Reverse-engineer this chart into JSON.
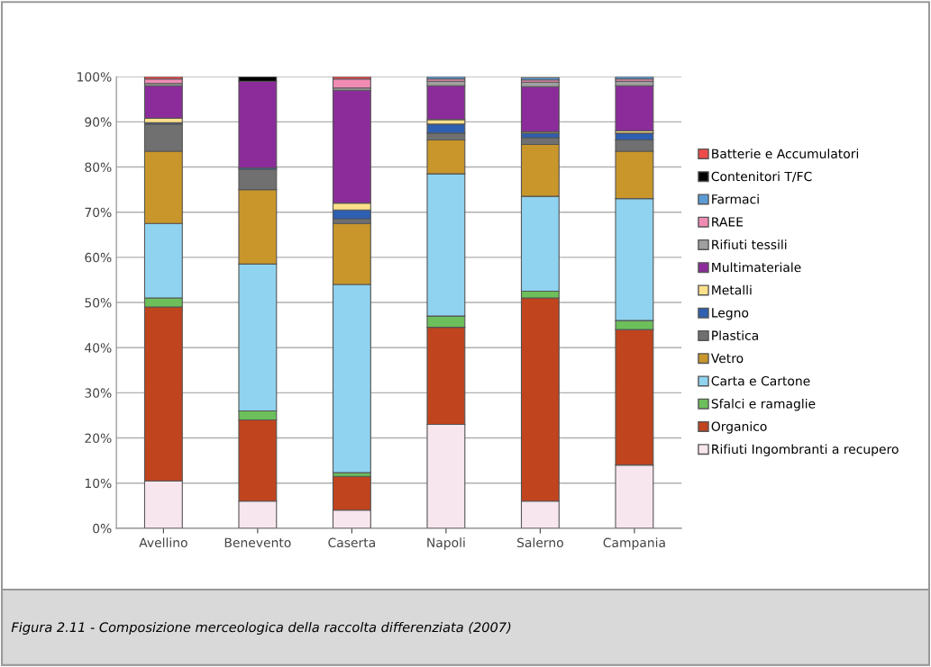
{
  "chart_data": {
    "type": "bar",
    "stacked": true,
    "categories": [
      "Avellino",
      "Benevento",
      "Caserta",
      "Napoli",
      "Salerno",
      "Campania"
    ],
    "series": [
      {
        "name": "Rifiuti Ingombranti a recupero",
        "color": "#f8e6ee",
        "values": [
          10.5,
          6,
          4,
          23,
          6,
          14
        ]
      },
      {
        "name": "Organico",
        "color": "#c0441e",
        "values": [
          38.5,
          18,
          7.5,
          21.5,
          45,
          30
        ]
      },
      {
        "name": "Sfalci e ramaglie",
        "color": "#6cbf5a",
        "values": [
          2,
          2,
          0.8,
          2.5,
          1.5,
          2
        ]
      },
      {
        "name": "Carta e Cartone",
        "color": "#8fd3f0",
        "values": [
          16.5,
          32.5,
          41.7,
          31.5,
          21,
          27
        ]
      },
      {
        "name": "Vetro",
        "color": "#c8962a",
        "values": [
          16,
          16.5,
          13.5,
          7.5,
          11.5,
          10.5
        ]
      },
      {
        "name": "Plastica",
        "color": "#707070",
        "values": [
          6,
          4.5,
          1,
          1.5,
          1.5,
          2.5
        ]
      },
      {
        "name": "Legno",
        "color": "#2e5fb0",
        "values": [
          0.3,
          0.3,
          2,
          2,
          1,
          1.5
        ]
      },
      {
        "name": "Metalli",
        "color": "#ffe08a",
        "values": [
          1,
          0,
          1.5,
          1,
          0.3,
          0.5
        ]
      },
      {
        "name": "Multimateriale",
        "color": "#8b2c9a",
        "values": [
          7.2,
          19.2,
          25,
          7.5,
          10,
          10
        ]
      },
      {
        "name": "Rifiuti tessili",
        "color": "#a0a0a0",
        "values": [
          0.5,
          0,
          0.5,
          1,
          1,
          1
        ]
      },
      {
        "name": "RAEE",
        "color": "#f08cb4",
        "values": [
          1,
          0,
          2,
          0.5,
          0.5,
          0.5
        ]
      },
      {
        "name": "Farmaci",
        "color": "#5b9bd5",
        "values": [
          0,
          0,
          0,
          0.5,
          0.5,
          0.5
        ]
      },
      {
        "name": "Contenitori T/FC",
        "color": "#000000",
        "values": [
          0,
          1,
          0,
          0,
          0,
          0
        ]
      },
      {
        "name": "Batterie e Accumulatori",
        "color": "#f04b4b",
        "values": [
          0.5,
          0,
          0.5,
          0,
          0,
          0
        ]
      }
    ],
    "ylim": [
      0,
      100
    ],
    "yticks": [
      {
        "value": 0,
        "label": "0%"
      },
      {
        "value": 10,
        "label": "10%"
      },
      {
        "value": 20,
        "label": "20%"
      },
      {
        "value": 30,
        "label": "30%"
      },
      {
        "value": 40,
        "label": "40%"
      },
      {
        "value": 50,
        "label": "50%"
      },
      {
        "value": 60,
        "label": "60%"
      },
      {
        "value": 70,
        "label": "70%"
      },
      {
        "value": 80,
        "label": "80%"
      },
      {
        "value": 90,
        "label": "90%"
      },
      {
        "value": 100,
        "label": "100%"
      }
    ],
    "grid": "y",
    "legend": "right",
    "annotations": [
      "Figura 2.11 - Composizione merceologica della raccolta differenziata (2007)"
    ]
  }
}
